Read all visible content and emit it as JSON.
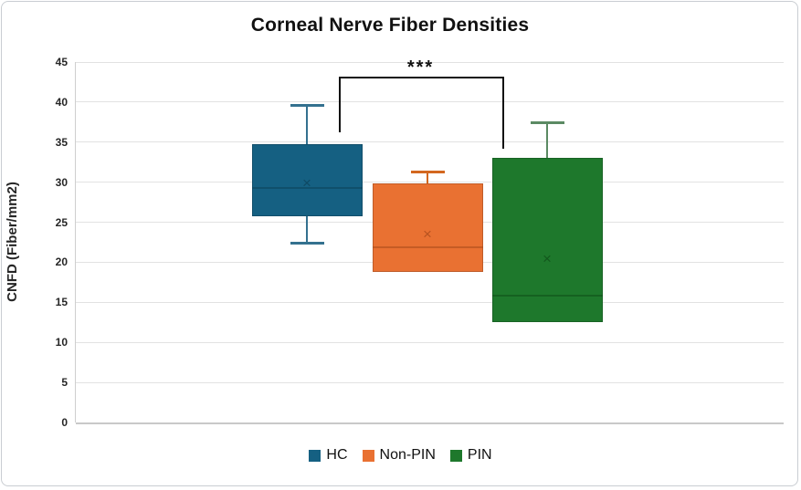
{
  "chart_data": {
    "type": "box",
    "title": "Corneal Nerve Fiber Densities",
    "ylabel": "CNFD (Fiber/mm2)",
    "xlabel": "",
    "ylim": [
      0,
      45
    ],
    "yticks": [
      0,
      5,
      10,
      15,
      20,
      25,
      30,
      35,
      40,
      45
    ],
    "grid": true,
    "legend_position": "bottom",
    "categories": [
      "HC",
      "Non-PIN",
      "PIN"
    ],
    "series": [
      {
        "name": "HC",
        "color": "#156082",
        "whisker_color": "#34718f",
        "detail_color": "#0d4259",
        "whisker_high": 39.6,
        "q3": 34.7,
        "mean": 29.9,
        "median": 29.3,
        "q1": 25.8,
        "whisker_low": 22.3
      },
      {
        "name": "Non-PIN",
        "color": "#E97132",
        "whisker_color": "#d3671f",
        "detail_color": "#a8491a",
        "whisker_high": 31.3,
        "q3": 29.8,
        "mean": 23.5,
        "median": 21.9,
        "q1": 18.8,
        "whisker_low": null
      },
      {
        "name": "PIN",
        "color": "#1E782C",
        "whisker_color": "#5b8a63",
        "detail_color": "#0f4e18",
        "whisker_high": 37.5,
        "q3": 33.0,
        "mean": 20.4,
        "median": 15.8,
        "q1": 12.5,
        "whisker_low": null
      }
    ],
    "annotation": {
      "label": "***",
      "between": [
        "HC",
        "PIN"
      ],
      "bar_value": 43.2,
      "left_end_value": 36.2,
      "right_end_value": 34.2
    }
  }
}
